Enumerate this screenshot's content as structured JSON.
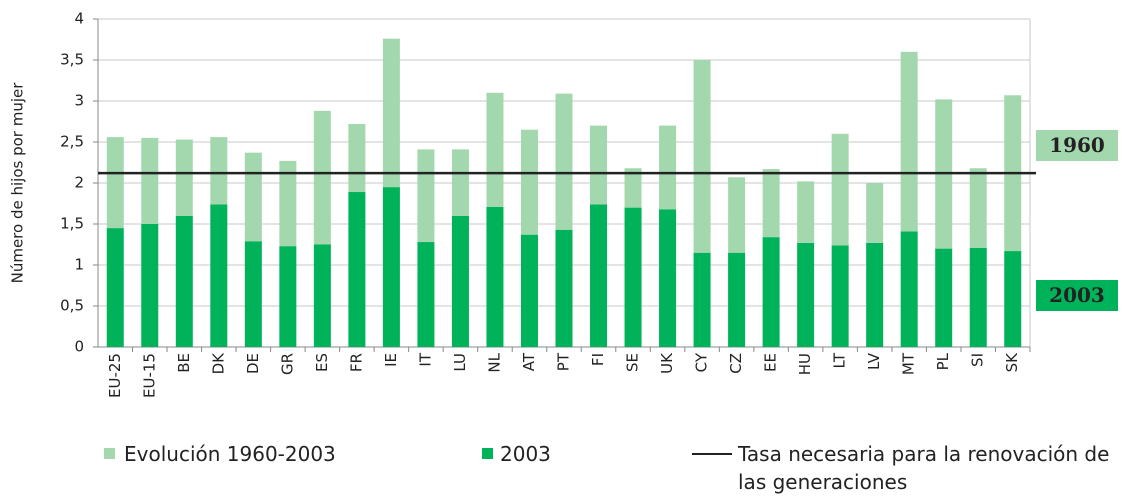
{
  "chart_data": {
    "type": "bar",
    "stacked": true,
    "y_label": "Número de hijos por mujer",
    "categories": [
      "EU-25",
      "EU-15",
      "BE",
      "DK",
      "DE",
      "GR",
      "ES",
      "FR",
      "IE",
      "IT",
      "LU",
      "NL",
      "AT",
      "PT",
      "FI",
      "SE",
      "UK",
      "CY",
      "CZ",
      "EE",
      "HU",
      "LT",
      "LV",
      "MT",
      "PL",
      "SI",
      "SK"
    ],
    "series": [
      {
        "name": "Evolución 1960-2003",
        "color": "#a3d8af",
        "values": [
          1.11,
          1.05,
          0.93,
          0.82,
          1.08,
          1.04,
          1.63,
          0.83,
          1.81,
          1.13,
          0.81,
          1.39,
          1.28,
          1.66,
          0.96,
          0.48,
          1.02,
          2.35,
          0.92,
          0.83,
          0.75,
          1.36,
          0.73,
          2.19,
          1.82,
          0.97,
          1.9
        ]
      },
      {
        "name": "2003",
        "color": "#00b25a",
        "values": [
          1.45,
          1.5,
          1.6,
          1.74,
          1.29,
          1.23,
          1.25,
          1.89,
          1.95,
          1.28,
          1.6,
          1.71,
          1.37,
          1.43,
          1.74,
          1.7,
          1.68,
          1.15,
          1.15,
          1.34,
          1.27,
          1.24,
          1.27,
          1.41,
          1.2,
          1.21,
          1.17
        ]
      }
    ],
    "reference_line": {
      "name": "Tasa necesaria para la renovación de las generaciones",
      "value": 2.12,
      "color": "#222222"
    },
    "side_labels": [
      "1960",
      "2003"
    ],
    "ylim": [
      0,
      4
    ],
    "yticks": [
      0,
      {
        "value": 0.5,
        "label": "0,5"
      },
      1,
      {
        "value": 1.5,
        "label": "1,5"
      },
      2,
      {
        "value": 2.5,
        "label": "2,5"
      },
      3,
      {
        "value": 3.5,
        "label": "3,5"
      },
      4
    ],
    "grid": true
  }
}
